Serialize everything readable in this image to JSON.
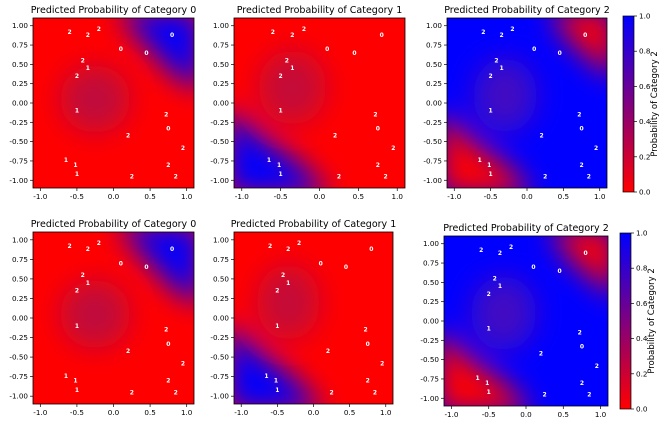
{
  "figure": {
    "colors": {
      "red": "#ff0000",
      "blue": "#0000ff",
      "frame": "#000000"
    }
  },
  "chart_data": [
    {
      "type": "heatmap",
      "title": "Predicted Probability of Category 0",
      "xlim": [
        -1.1,
        1.1
      ],
      "ylim": [
        -1.1,
        1.1
      ],
      "xticks": [
        "-1.0",
        "-0.5",
        "0.0",
        "0.5",
        "1.0"
      ],
      "yticks": [
        "1.00",
        "0.75",
        "0.50",
        "0.25",
        "0.00",
        "-0.25",
        "-0.50",
        "-0.75",
        "-1.00"
      ],
      "surface": "blue where category 0 is likely (upper-right corner), red elsewhere"
    },
    {
      "type": "heatmap",
      "title": "Predicted Probability of Category 1",
      "xlim": [
        -1.1,
        1.1
      ],
      "ylim": [
        -1.1,
        1.1
      ],
      "xticks": [
        "-1.0",
        "-0.5",
        "0.0",
        "0.5",
        "1.0"
      ],
      "yticks": [
        "1.00",
        "0.75",
        "0.50",
        "0.25",
        "0.00",
        "-0.25",
        "-0.50",
        "-0.75",
        "-1.00"
      ],
      "surface": "blue where category 1 is likely (lower-left corner), red elsewhere"
    },
    {
      "type": "heatmap",
      "title": "Predicted Probability of Category 2",
      "xlim": [
        -1.1,
        1.1
      ],
      "ylim": [
        -1.1,
        1.1
      ],
      "xticks": [
        "-1.0",
        "-0.5",
        "0.0",
        "0.5",
        "1.0"
      ],
      "yticks": [
        "1.00",
        "0.75",
        "0.50",
        "0.25",
        "0.00",
        "-0.25",
        "-0.50",
        "-0.75",
        "-1.00"
      ],
      "surface": "probability of category 2: red corners at upper-right and lower-left, blue elsewhere"
    },
    {
      "type": "heatmap",
      "title": "Predicted Probability of Category 0",
      "xlim": [
        -1.1,
        1.1
      ],
      "ylim": [
        -1.1,
        1.1
      ],
      "xticks": [
        "-1.0",
        "-0.5",
        "0.0",
        "0.5",
        "1.0"
      ],
      "yticks": [
        "1.00",
        "0.75",
        "0.50",
        "0.25",
        "0.00",
        "-0.25",
        "-0.50",
        "-0.75",
        "-1.00"
      ]
    },
    {
      "type": "heatmap",
      "title": "Predicted Probability of Category 1",
      "xlim": [
        -1.1,
        1.1
      ],
      "ylim": [
        -1.1,
        1.1
      ],
      "xticks": [
        "-1.0",
        "-0.5",
        "0.0",
        "0.5",
        "1.0"
      ],
      "yticks": [
        "1.00",
        "0.75",
        "0.50",
        "0.25",
        "0.00",
        "-0.25",
        "-0.50",
        "-0.75",
        "-1.00"
      ]
    },
    {
      "type": "heatmap",
      "title": "Predicted Probability of Category 2",
      "xlim": [
        -1.1,
        1.1
      ],
      "ylim": [
        -1.1,
        1.1
      ],
      "xticks": [
        "-1.0",
        "-0.5",
        "0.0",
        "0.5",
        "1.0"
      ],
      "yticks": [
        "1.00",
        "0.75",
        "0.50",
        "0.25",
        "0.00",
        "-0.25",
        "-0.50",
        "-0.75",
        "-1.00"
      ]
    }
  ],
  "points": [
    {
      "x": -0.6,
      "y": 0.92,
      "label": "2"
    },
    {
      "x": -0.35,
      "y": 0.88,
      "label": "2"
    },
    {
      "x": -0.2,
      "y": 0.96,
      "label": "2"
    },
    {
      "x": 0.1,
      "y": 0.7,
      "label": "0"
    },
    {
      "x": 0.45,
      "y": 0.65,
      "label": "0"
    },
    {
      "x": 0.8,
      "y": 0.88,
      "label": "0"
    },
    {
      "x": -0.42,
      "y": 0.55,
      "label": "2"
    },
    {
      "x": -0.35,
      "y": 0.45,
      "label": "1"
    },
    {
      "x": -0.5,
      "y": 0.35,
      "label": "2"
    },
    {
      "x": -0.5,
      "y": -0.1,
      "label": "1"
    },
    {
      "x": 0.72,
      "y": -0.15,
      "label": "2"
    },
    {
      "x": 0.75,
      "y": -0.33,
      "label": "0"
    },
    {
      "x": 0.2,
      "y": -0.42,
      "label": "2"
    },
    {
      "x": 0.95,
      "y": -0.58,
      "label": "2"
    },
    {
      "x": -0.65,
      "y": -0.74,
      "label": "1"
    },
    {
      "x": -0.52,
      "y": -0.8,
      "label": "1"
    },
    {
      "x": -0.5,
      "y": -0.92,
      "label": "1"
    },
    {
      "x": 0.75,
      "y": -0.8,
      "label": "2"
    },
    {
      "x": 0.25,
      "y": -0.95,
      "label": "2"
    },
    {
      "x": 0.85,
      "y": -0.95,
      "label": "2"
    }
  ],
  "colorbars": [
    {
      "label": "Probability of Category 2",
      "ticks": [
        "1.0",
        "0.8",
        "0.6",
        "0.4",
        "0.2",
        "0.0"
      ]
    },
    {
      "label": "Probability of Category 2",
      "ticks": [
        "1.0",
        "0.8",
        "0.6",
        "0.4",
        "0.2",
        "0.0"
      ]
    }
  ]
}
